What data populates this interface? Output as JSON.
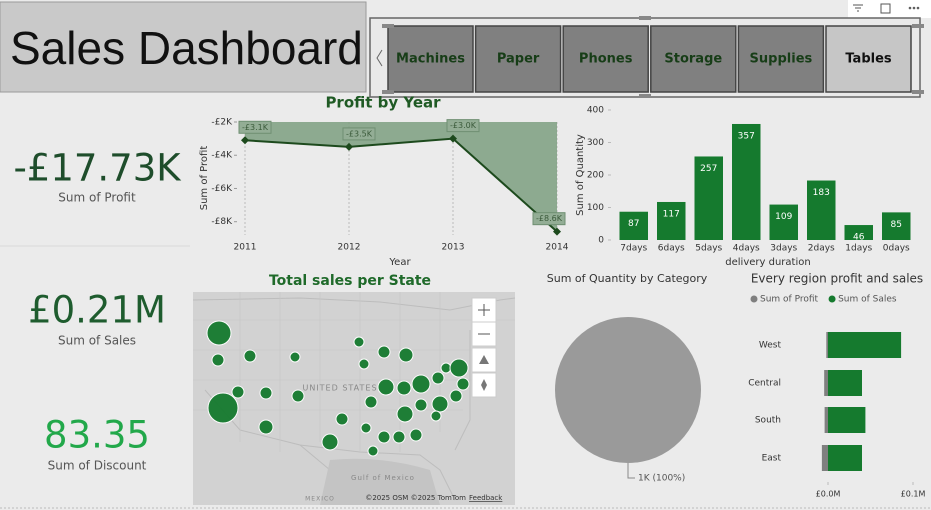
{
  "header": {
    "title": "Sales Dashboard"
  },
  "slicer": {
    "items": [
      "Machines",
      "Paper",
      "Phones",
      "Storage",
      "Supplies",
      "Tables"
    ],
    "selected_index": 5
  },
  "cards": [
    {
      "value": "-£17.73K",
      "label": "Sum of Profit",
      "color": "#1e4d2b"
    },
    {
      "value": "£0.21M",
      "label": "Sum of Sales",
      "color": "#1e5c2e"
    },
    {
      "value": "83.35",
      "label": "Sum of Discount",
      "color": "#22a84a"
    }
  ],
  "chart_data": [
    {
      "type": "line",
      "title": "Profit by Year",
      "x_label": "Year",
      "y_label": "Sum of Profit",
      "categories": [
        "2011",
        "2012",
        "2013",
        "2014"
      ],
      "values": [
        -3100,
        -3500,
        -3000,
        -8600
      ],
      "value_labels": [
        "-£3.1K",
        "-£3.5K",
        "-£3.0K",
        "-£8.6K"
      ],
      "color": "#1d4a1d",
      "area_color": "#7d9f80",
      "ylim": [
        -8800,
        -2000
      ],
      "yticks": [
        {
          "value": -2000,
          "label": "-£2K"
        },
        {
          "value": -4000,
          "label": "-£4K"
        },
        {
          "value": -6000,
          "label": "-£6K"
        },
        {
          "value": -8000,
          "label": "-£8K"
        }
      ],
      "grid": true
    },
    {
      "type": "bar",
      "x_label": "delivery duration",
      "y_label": "Sum of Quantity",
      "categories": [
        "7days",
        "6days",
        "5days",
        "4days",
        "3days",
        "2days",
        "1days",
        "0days"
      ],
      "values": [
        87,
        117,
        257,
        357,
        109,
        183,
        46,
        85
      ],
      "color": "#157a2e",
      "ylim": [
        0,
        400
      ],
      "yticks": [
        0,
        100,
        200,
        300,
        400
      ]
    },
    {
      "type": "map",
      "title": "Total sales per State",
      "labels": [
        "UNITED STATES",
        "Gulf of Mexico",
        "MEXICO"
      ],
      "attribution": "©2025 OSM ©2025 TomTom",
      "link": "Feedback",
      "color": "#157a2e"
    },
    {
      "type": "pie",
      "title": "Sum of Quantity by Category",
      "values": [
        100
      ],
      "value_labels": [
        "1K (100%)"
      ],
      "colors": [
        "#9a9a9a"
      ]
    },
    {
      "type": "hbar",
      "title": "Every region profit and sales",
      "categories": [
        "West",
        "Central",
        "South",
        "East"
      ],
      "series": [
        {
          "name": "Sum of Profit",
          "color": "#7f7f7f",
          "values": [
            -2000,
            -4500,
            -4000,
            -7200
          ]
        },
        {
          "name": "Sum of Sales",
          "color": "#157a2e",
          "values": [
            86000,
            40000,
            44000,
            40000
          ]
        }
      ],
      "xlim": [
        -15000,
        105000
      ],
      "xticks": [
        {
          "value": 0,
          "label": "£0.0M"
        },
        {
          "value": 100000,
          "label": "£0.1M"
        }
      ]
    }
  ]
}
